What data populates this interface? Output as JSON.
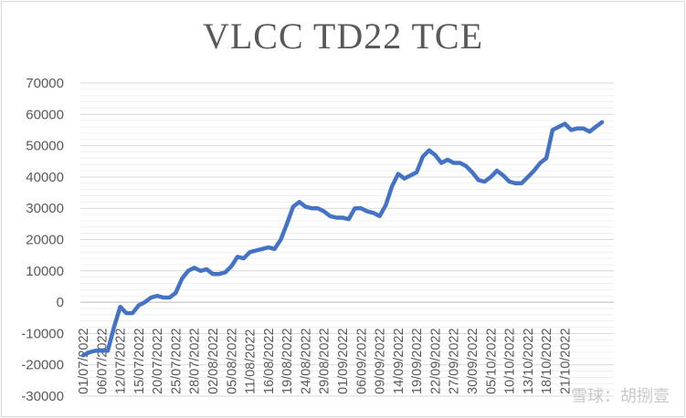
{
  "watermark": "雪球：胡捌壹",
  "chart_data": {
    "type": "line",
    "title": "VLCC TD22 TCE",
    "xlabel": "",
    "ylabel": "",
    "ylim": [
      -30000,
      70000
    ],
    "ytick_step": 10000,
    "grid": true,
    "legend": "none",
    "line_color": "#4472c4",
    "x_tick_labels": [
      "01/07/2022",
      "06/07/2022",
      "12/07/2022",
      "15/07/2022",
      "20/07/2022",
      "25/07/2022",
      "28/07/2022",
      "02/08/2022",
      "05/08/2022",
      "11/08/2022",
      "16/08/2022",
      "19/08/2022",
      "24/08/2022",
      "29/08/2022",
      "01/09/2022",
      "06/09/2022",
      "09/09/2022",
      "14/09/2022",
      "19/09/2022",
      "22/09/2022",
      "27/09/2022",
      "30/09/2022",
      "05/10/2022",
      "10/10/2022",
      "13/10/2022",
      "18/10/2022",
      "21/10/2022"
    ],
    "x_tick_every": 3,
    "series": [
      {
        "values": [
          -17000,
          -16000,
          -15500,
          -15500,
          -15500,
          -8000,
          -1500,
          -3500,
          -3500,
          -1000,
          0,
          1500,
          2000,
          1500,
          1500,
          3000,
          7500,
          10000,
          11000,
          10000,
          10500,
          9000,
          9000,
          9500,
          11500,
          14500,
          14000,
          16000,
          16500,
          17000,
          17500,
          17000,
          20000,
          25000,
          30500,
          32000,
          30500,
          30000,
          30000,
          29000,
          27500,
          27000,
          27000,
          26500,
          30000,
          30000,
          29000,
          28500,
          27500,
          31000,
          37000,
          41000,
          39500,
          40500,
          41500,
          46500,
          48500,
          47000,
          44500,
          45500,
          44500,
          44500,
          43500,
          41500,
          39000,
          38500,
          40000,
          42000,
          40500,
          38500,
          38000,
          38000,
          40000,
          42000,
          44500,
          46000,
          55000,
          56000,
          57000,
          55000,
          55500,
          55500,
          54500,
          56000,
          57500
        ]
      }
    ]
  }
}
